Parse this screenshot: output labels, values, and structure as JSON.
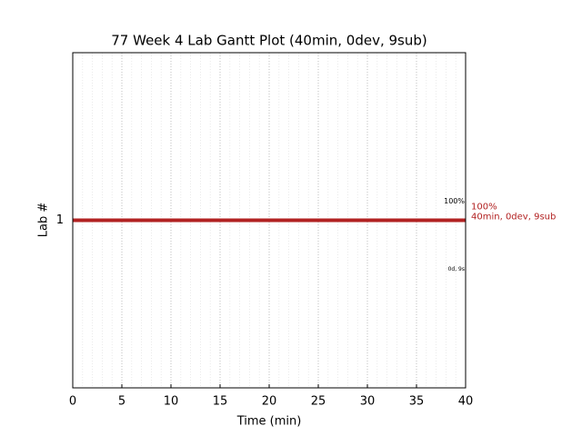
{
  "chart_data": {
    "type": "gantt",
    "title": "77 Week 4 Lab Gantt Plot (40min, 0dev, 9sub)",
    "x_label": "Time (min)",
    "y_label": "Lab #",
    "xlim": [
      0,
      40
    ],
    "xticks": [
      0,
      5,
      10,
      15,
      20,
      25,
      30,
      35,
      40
    ],
    "xminorticks": [
      1,
      2,
      3,
      4,
      6,
      7,
      8,
      9,
      11,
      12,
      13,
      14,
      16,
      17,
      18,
      19,
      21,
      22,
      23,
      24,
      26,
      27,
      28,
      29,
      31,
      32,
      33,
      34,
      36,
      37,
      38,
      39
    ],
    "ylim": [
      0,
      2
    ],
    "yticks": [
      1
    ],
    "grid": true,
    "bars": [
      {
        "category": 1,
        "start": 0,
        "end": 40,
        "color": "#b22222",
        "labels": [
          "100%",
          "40min, 0dev, 9sub"
        ],
        "top_note": "100%",
        "bottom_note": "0d, 9s"
      }
    ]
  }
}
